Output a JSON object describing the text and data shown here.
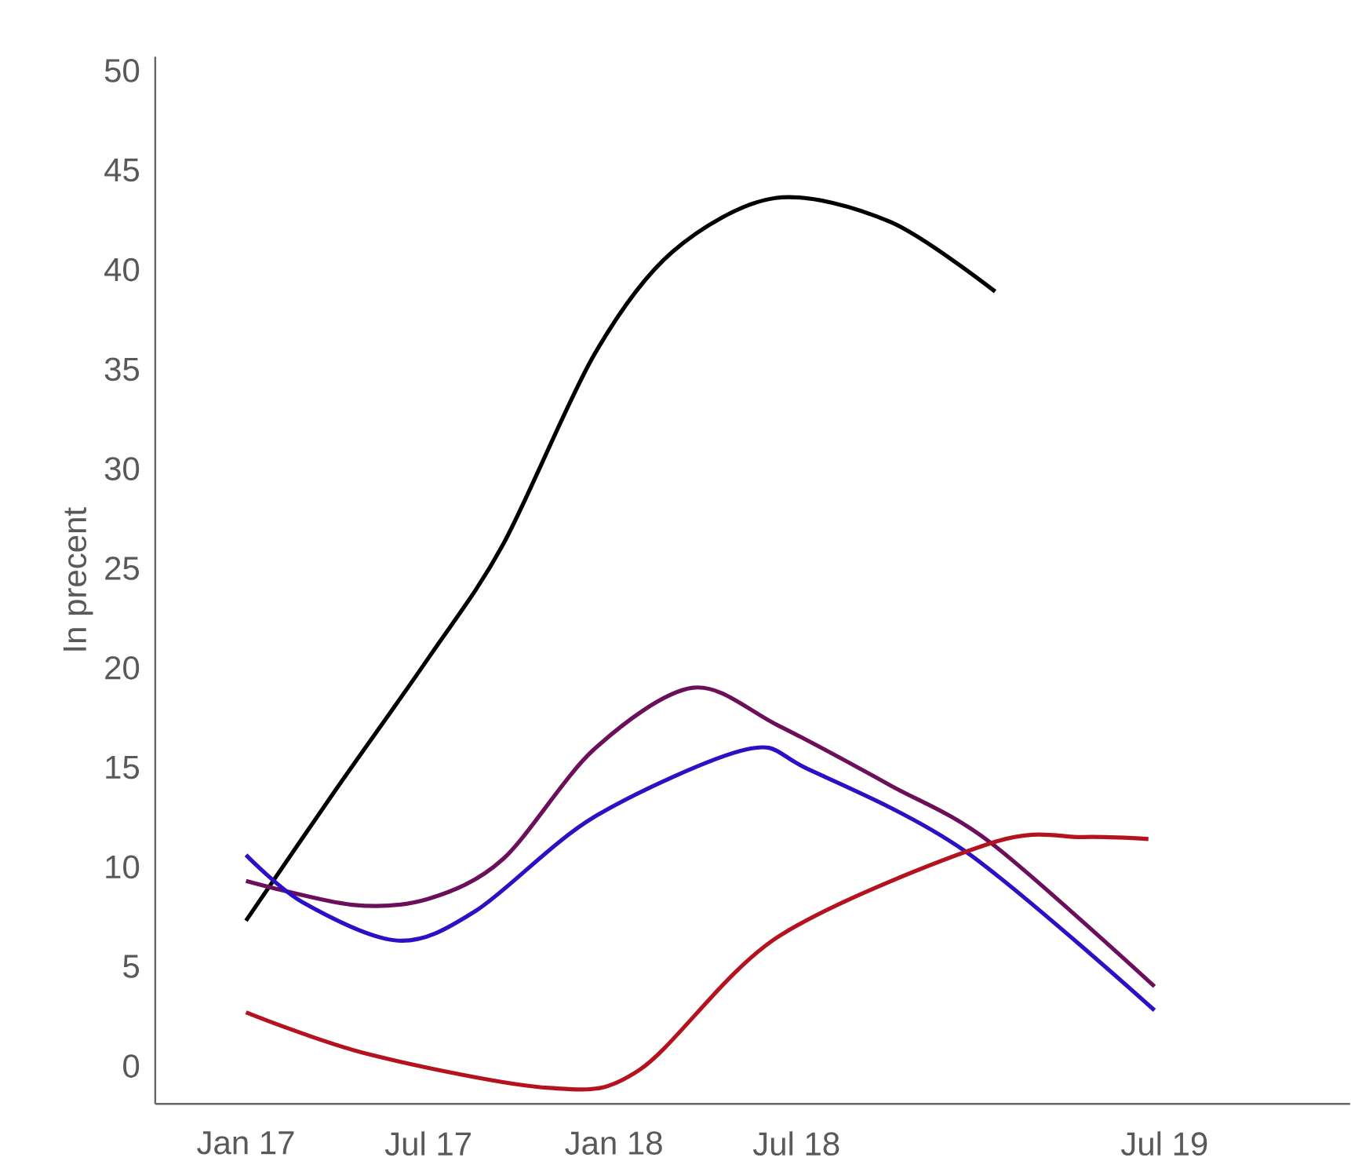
{
  "chart_data": {
    "type": "line",
    "ylabel": "In precent",
    "x": [
      "2017-01-01",
      "2017-03-30",
      "2017-07-01",
      "2017-09-13",
      "2017-12-12",
      "2018-02-28",
      "2018-06-10",
      "2018-10-02",
      "2019-01-14"
    ],
    "series": [
      {
        "color": "#000000",
        "values": [
          7.3,
          13.8,
          20.5,
          26.2,
          35.7,
          40.9,
          43.6,
          42.4,
          38.9
        ]
      },
      {
        "color": "#6b0f5a",
        "x": [
          "2017-01-01",
          "2017-04-16",
          "2017-07-01",
          "2017-09-13",
          "2017-12-12",
          "2018-03-20",
          "2018-06-13",
          "2018-10-02",
          "2019-01-10",
          "2019-06-21"
        ],
        "values": [
          9.3,
          8.1,
          8.4,
          10.4,
          15.9,
          19.0,
          17.1,
          14.1,
          11.2,
          4.0
        ]
      },
      {
        "color": "#2a12c4",
        "x": [
          "2017-01-01",
          "2017-02-27",
          "2017-06-01",
          "2017-08-17",
          "2017-12-12",
          "2018-05-12",
          "2018-07-13",
          "2018-12-15",
          "2019-06-21"
        ],
        "values": [
          10.6,
          8.2,
          6.3,
          7.8,
          12.5,
          15.9,
          14.9,
          10.8,
          2.8
        ]
      },
      {
        "color": "#b5121f",
        "x": [
          "2017-01-01",
          "2017-05-02",
          "2017-10-29",
          "2018-01-26",
          "2018-06-13",
          "2019-01-10",
          "2019-04-11",
          "2019-06-15"
        ],
        "values": [
          2.7,
          0.6,
          -1.1,
          -0.2,
          6.5,
          11.2,
          11.5,
          11.4
        ]
      }
    ],
    "xlim": [
      "2016-10-03",
      "2020-01-01"
    ],
    "xticks": [
      {
        "value": "2017-01-01",
        "label": "Jan 17"
      },
      {
        "value": "2017-07-01",
        "label": "Jul 17"
      },
      {
        "value": "2018-01-01",
        "label": "Jan 18"
      },
      {
        "value": "2018-07-01",
        "label": "Jul 18"
      },
      {
        "value": "2019-07-01",
        "label": "Jul 19"
      }
    ],
    "ylim": [
      -1.9,
      50.7
    ],
    "yticks": [
      0,
      5,
      10,
      15,
      20,
      25,
      30,
      35,
      40,
      45,
      50
    ],
    "grid": false,
    "marker": "none",
    "line_style": "solid"
  }
}
